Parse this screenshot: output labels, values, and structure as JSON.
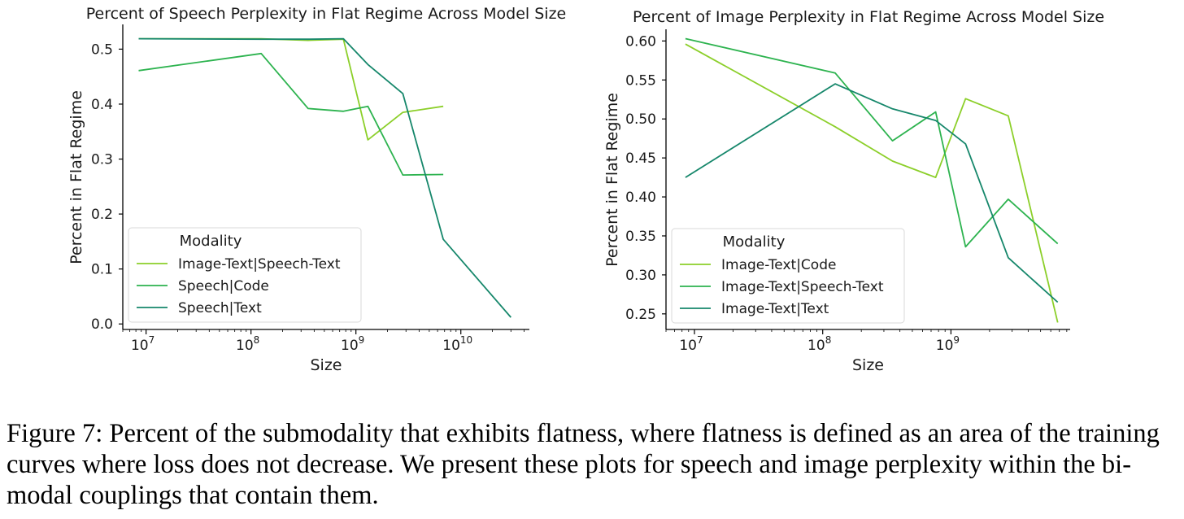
{
  "figure": {
    "caption": "Figure 7: Percent of the submodality that exhibits flatness, where flatness is defined as an area of the training curves where loss does not decrease. We present these plots for speech and image perplexity within the bi-modal couplings that contain them."
  },
  "chart_data": [
    {
      "type": "line",
      "title": "Percent of Speech Perplexity in Flat Regime Across Model Size",
      "xlabel": "Size",
      "ylabel": "Percent in Flat Regime",
      "xscale": "log",
      "xlim": [
        6000000,
        45000000000
      ],
      "ylim": [
        -0.01,
        0.545
      ],
      "xticks": [
        {
          "value": 10000000,
          "base": "10",
          "exp": "7"
        },
        {
          "value": 100000000,
          "base": "10",
          "exp": "8"
        },
        {
          "value": 1000000000,
          "base": "10",
          "exp": "9"
        },
        {
          "value": 10000000000,
          "base": "10",
          "exp": "10"
        }
      ],
      "yticks": [
        {
          "value": 0.0,
          "label": "0.0"
        },
        {
          "value": 0.1,
          "label": "0.1"
        },
        {
          "value": 0.2,
          "label": "0.2"
        },
        {
          "value": 0.3,
          "label": "0.3"
        },
        {
          "value": 0.4,
          "label": "0.4"
        },
        {
          "value": 0.5,
          "label": "0.5"
        }
      ],
      "legend": {
        "title": "Modality",
        "position": "lower-left"
      },
      "series": [
        {
          "name": "Image-Text|Speech-Text",
          "color": "#8ccf2a",
          "x": [
            8500000,
            125000000,
            350000000,
            760000000,
            1300000000,
            2800000000,
            6800000000
          ],
          "y": [
            0.519,
            0.519,
            0.516,
            0.518,
            0.335,
            0.385,
            0.396
          ]
        },
        {
          "name": "Speech|Code",
          "color": "#2db34f",
          "x": [
            8500000,
            125000000,
            350000000,
            760000000,
            1300000000,
            2800000000,
            6800000000
          ],
          "y": [
            0.461,
            0.492,
            0.392,
            0.387,
            0.396,
            0.271,
            0.272
          ]
        },
        {
          "name": "Speech|Text",
          "color": "#16876b",
          "x": [
            8500000,
            125000000,
            350000000,
            760000000,
            1300000000,
            2800000000,
            6800000000,
            30000000000
          ],
          "y": [
            0.519,
            0.518,
            0.518,
            0.519,
            0.472,
            0.419,
            0.154,
            0.012
          ]
        }
      ]
    },
    {
      "type": "line",
      "title": "Percent of Image Perplexity in Flat Regime Across Model Size",
      "xlabel": "Size",
      "ylabel": "Percent in Flat Regime",
      "xscale": "log",
      "xlim": [
        6000000,
        8500000000
      ],
      "ylim": [
        0.23,
        0.615
      ],
      "xticks": [
        {
          "value": 10000000,
          "base": "10",
          "exp": "7"
        },
        {
          "value": 100000000,
          "base": "10",
          "exp": "8"
        },
        {
          "value": 1000000000,
          "base": "10",
          "exp": "9"
        }
      ],
      "yticks": [
        {
          "value": 0.25,
          "label": "0.25"
        },
        {
          "value": 0.3,
          "label": "0.30"
        },
        {
          "value": 0.35,
          "label": "0.35"
        },
        {
          "value": 0.4,
          "label": "0.40"
        },
        {
          "value": 0.45,
          "label": "0.45"
        },
        {
          "value": 0.5,
          "label": "0.50"
        },
        {
          "value": 0.55,
          "label": "0.55"
        },
        {
          "value": 0.6,
          "label": "0.60"
        }
      ],
      "legend": {
        "title": "Modality",
        "position": "lower-left"
      },
      "series": [
        {
          "name": "Image-Text|Code",
          "color": "#8ccf2a",
          "x": [
            8500000,
            125000000,
            350000000,
            760000000,
            1300000000,
            2800000000,
            6800000000
          ],
          "y": [
            0.596,
            0.49,
            0.446,
            0.425,
            0.526,
            0.504,
            0.239
          ]
        },
        {
          "name": "Image-Text|Speech-Text",
          "color": "#2db34f",
          "x": [
            8500000,
            125000000,
            350000000,
            760000000,
            1300000000,
            2800000000,
            6800000000
          ],
          "y": [
            0.603,
            0.559,
            0.472,
            0.509,
            0.336,
            0.397,
            0.34
          ]
        },
        {
          "name": "Image-Text|Text",
          "color": "#16876b",
          "x": [
            8500000,
            125000000,
            350000000,
            760000000,
            1300000000,
            2800000000,
            6800000000
          ],
          "y": [
            0.425,
            0.545,
            0.513,
            0.498,
            0.468,
            0.322,
            0.265
          ]
        }
      ]
    }
  ]
}
